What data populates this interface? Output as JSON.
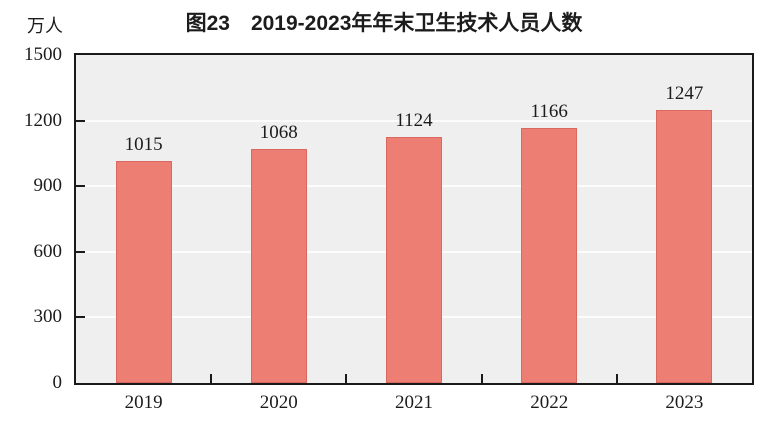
{
  "figure": {
    "title": "图23　2019-2023年年末卫生技术人员人数",
    "unit_label": "万人"
  },
  "chart_data": {
    "type": "bar",
    "title": "图23　2019-2023年年末卫生技术人员人数",
    "categories": [
      "2019",
      "2020",
      "2021",
      "2022",
      "2023"
    ],
    "values": [
      1015,
      1068,
      1124,
      1166,
      1247
    ],
    "xlabel": "",
    "ylabel": "万人",
    "ylim": [
      0,
      1500
    ],
    "yticks": [
      0,
      300,
      600,
      900,
      1200,
      1500
    ],
    "grid": true,
    "legend": false,
    "value_labels": true,
    "colors": {
      "bar_fill": "#ed7e74",
      "bar_border": "#da685e",
      "plot_background": "#efeff0",
      "gridline": "#fcfcfd",
      "frame": "#1a1a1a",
      "text": "#1c1c1c"
    }
  }
}
